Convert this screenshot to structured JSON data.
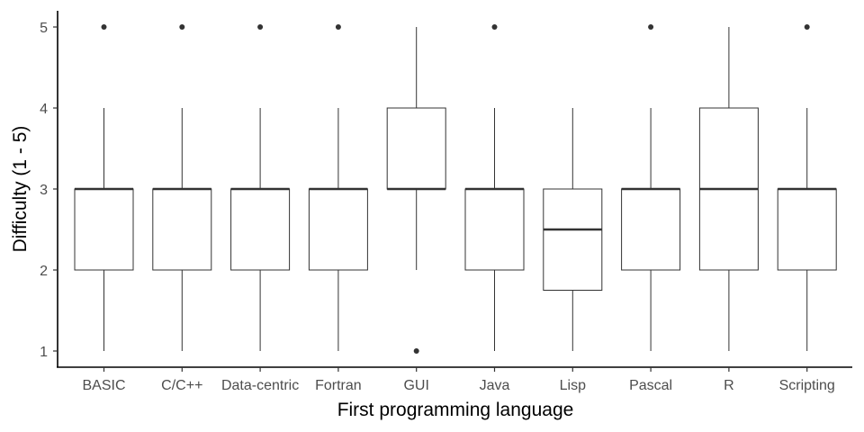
{
  "chart_data": {
    "type": "box",
    "xlabel": "First programming language",
    "ylabel": "Difficulty (1 - 5)",
    "ylim": [
      0.8,
      5.2
    ],
    "yticks": [
      1,
      2,
      3,
      4,
      5
    ],
    "categories": [
      "BASIC",
      "C/C++",
      "Data-centric",
      "Fortran",
      "GUI",
      "Java",
      "Lisp",
      "Pascal",
      "R",
      "Scripting"
    ],
    "boxes": [
      {
        "category": "BASIC",
        "min": 1,
        "q1": 2,
        "median": 3,
        "q3": 3,
        "max": 4,
        "outliers": [
          5
        ]
      },
      {
        "category": "C/C++",
        "min": 1,
        "q1": 2,
        "median": 3,
        "q3": 3,
        "max": 4,
        "outliers": [
          5
        ]
      },
      {
        "category": "Data-centric",
        "min": 1,
        "q1": 2,
        "median": 3,
        "q3": 3,
        "max": 4,
        "outliers": [
          5
        ]
      },
      {
        "category": "Fortran",
        "min": 1,
        "q1": 2,
        "median": 3,
        "q3": 3,
        "max": 4,
        "outliers": [
          5
        ]
      },
      {
        "category": "GUI",
        "min": 2,
        "q1": 3,
        "median": 3,
        "q3": 4,
        "max": 5,
        "outliers": [
          1
        ]
      },
      {
        "category": "Java",
        "min": 1,
        "q1": 2,
        "median": 3,
        "q3": 3,
        "max": 4,
        "outliers": [
          5
        ]
      },
      {
        "category": "Lisp",
        "min": 1,
        "q1": 1.75,
        "median": 2.5,
        "q3": 3,
        "max": 4,
        "outliers": []
      },
      {
        "category": "Pascal",
        "min": 1,
        "q1": 2,
        "median": 3,
        "q3": 3,
        "max": 4,
        "outliers": [
          5
        ]
      },
      {
        "category": "R",
        "min": 1,
        "q1": 2,
        "median": 3,
        "q3": 4,
        "max": 5,
        "outliers": []
      },
      {
        "category": "Scripting",
        "min": 1,
        "q1": 2,
        "median": 3,
        "q3": 3,
        "max": 4,
        "outliers": [
          5
        ]
      }
    ],
    "grid": false,
    "colors": {
      "box_fill": "#ffffff",
      "stroke": "#333333",
      "axis": "#000000",
      "outlier": "#333333"
    }
  }
}
